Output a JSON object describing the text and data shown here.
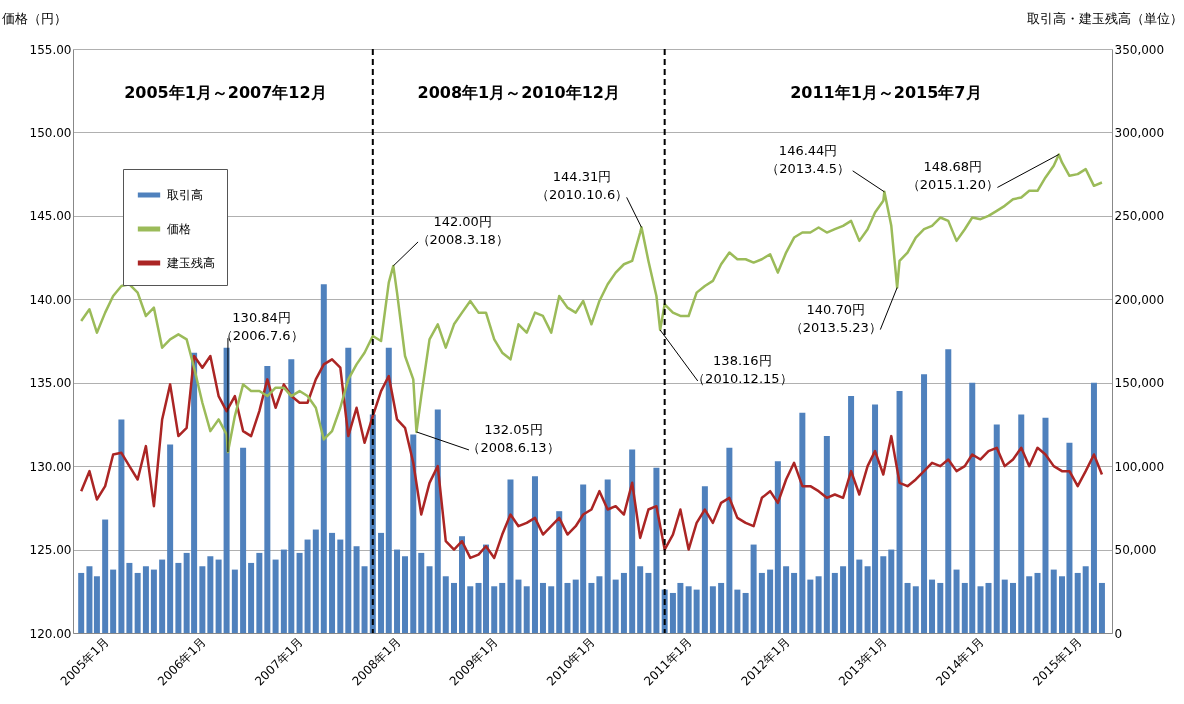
{
  "chart_data": {
    "type": "bar",
    "ylabel": "価格（円）",
    "y2label": "取引高・建玉残高（単位）",
    "x": [
      "2005-01",
      "2005-02",
      "2005-03",
      "2005-04",
      "2005-05",
      "2005-06",
      "2005-07",
      "2005-08",
      "2005-09",
      "2005-10",
      "2005-11",
      "2005-12",
      "2006-01",
      "2006-02",
      "2006-03",
      "2006-04",
      "2006-05",
      "2006-06",
      "2006-07",
      "2006-08",
      "2006-09",
      "2006-10",
      "2006-11",
      "2006-12",
      "2007-01",
      "2007-02",
      "2007-03",
      "2007-04",
      "2007-05",
      "2007-06",
      "2007-07",
      "2007-08",
      "2007-09",
      "2007-10",
      "2007-11",
      "2007-12",
      "2008-01",
      "2008-02",
      "2008-03",
      "2008-04",
      "2008-05",
      "2008-06",
      "2008-07",
      "2008-08",
      "2008-09",
      "2008-10",
      "2008-11",
      "2008-12",
      "2009-01",
      "2009-02",
      "2009-03",
      "2009-04",
      "2009-05",
      "2009-06",
      "2009-07",
      "2009-08",
      "2009-09",
      "2009-10",
      "2009-11",
      "2009-12",
      "2010-01",
      "2010-02",
      "2010-03",
      "2010-04",
      "2010-05",
      "2010-06",
      "2010-07",
      "2010-08",
      "2010-09",
      "2010-10",
      "2010-11",
      "2010-12",
      "2011-01",
      "2011-02",
      "2011-03",
      "2011-04",
      "2011-05",
      "2011-06",
      "2011-07",
      "2011-08",
      "2011-09",
      "2011-10",
      "2011-11",
      "2011-12",
      "2012-01",
      "2012-02",
      "2012-03",
      "2012-04",
      "2012-05",
      "2012-06",
      "2012-07",
      "2012-08",
      "2012-09",
      "2012-10",
      "2012-11",
      "2012-12",
      "2013-01",
      "2013-02",
      "2013-03",
      "2013-04",
      "2013-05",
      "2013-06",
      "2013-07",
      "2013-08",
      "2013-09",
      "2013-10",
      "2013-11",
      "2013-12",
      "2014-01",
      "2014-02",
      "2014-03",
      "2014-04",
      "2014-05",
      "2014-06",
      "2014-07",
      "2014-08",
      "2014-09",
      "2014-10",
      "2014-11",
      "2014-12",
      "2015-01",
      "2015-02",
      "2015-03",
      "2015-04",
      "2015-05",
      "2015-06",
      "2015-07"
    ],
    "series": [
      {
        "name": "取引高",
        "axis": "y2",
        "color": "#4f81bd",
        "values": [
          36000,
          40000,
          34000,
          68000,
          38000,
          128000,
          42000,
          36000,
          40000,
          38000,
          44000,
          113000,
          42000,
          48000,
          168000,
          40000,
          46000,
          44000,
          171000,
          38000,
          111000,
          42000,
          48000,
          160000,
          44000,
          50000,
          164000,
          48000,
          56000,
          62000,
          209000,
          60000,
          56000,
          171000,
          52000,
          40000,
          131000,
          60000,
          171000,
          50000,
          46000,
          119000,
          48000,
          40000,
          134000,
          34000,
          30000,
          58000,
          28000,
          30000,
          53000,
          28000,
          30000,
          92000,
          32000,
          28000,
          94000,
          30000,
          28000,
          73000,
          30000,
          32000,
          89000,
          30000,
          34000,
          92000,
          32000,
          36000,
          110000,
          40000,
          36000,
          99000,
          26000,
          24000,
          30000,
          28000,
          26000,
          88000,
          28000,
          30000,
          111000,
          26000,
          24000,
          53000,
          36000,
          38000,
          103000,
          40000,
          36000,
          132000,
          32000,
          34000,
          118000,
          36000,
          40000,
          142000,
          44000,
          40000,
          137000,
          46000,
          50000,
          145000,
          30000,
          28000,
          155000,
          32000,
          30000,
          170000,
          38000,
          30000,
          150000,
          28000,
          30000,
          125000,
          32000,
          30000,
          131000,
          34000,
          36000,
          129000,
          38000,
          34000,
          114000,
          36000,
          40000,
          150000,
          30000
        ]
      },
      {
        "name": "価格",
        "type": "line",
        "axis": "y",
        "color": "#9bbb59",
        "x": [
          "2005-01",
          "2005-02",
          "2005-03",
          "2005-04",
          "2005-05",
          "2005-06",
          "2005-07",
          "2005-08",
          "2005-09",
          "2005-10",
          "2005-11",
          "2005-12",
          "2006-01",
          "2006-02",
          "2006-03",
          "2006-04",
          "2006-05",
          "2006-06",
          "2006-07",
          "2006-07-06",
          "2006-08",
          "2006-09",
          "2006-10",
          "2006-11",
          "2006-12",
          "2007-01",
          "2007-02",
          "2007-03",
          "2007-04",
          "2007-05",
          "2007-06",
          "2007-07",
          "2007-08",
          "2007-09",
          "2007-10",
          "2007-11",
          "2007-12",
          "2008-01",
          "2008-02",
          "2008-03",
          "2008-03-18",
          "2008-04",
          "2008-05",
          "2008-06",
          "2008-06-13",
          "2008-07",
          "2008-08",
          "2008-09",
          "2008-10",
          "2008-11",
          "2008-12",
          "2009-01",
          "2009-02",
          "2009-03",
          "2009-04",
          "2009-05",
          "2009-06",
          "2009-07",
          "2009-08",
          "2009-09",
          "2009-10",
          "2009-11",
          "2009-12",
          "2010-01",
          "2010-02",
          "2010-03",
          "2010-04",
          "2010-05",
          "2010-06",
          "2010-07",
          "2010-08",
          "2010-09",
          "2010-10",
          "2010-10-06",
          "2010-11",
          "2010-12",
          "2010-12-15",
          "2011-01",
          "2011-02",
          "2011-03",
          "2011-04",
          "2011-05",
          "2011-06",
          "2011-07",
          "2011-08",
          "2011-09",
          "2011-10",
          "2011-11",
          "2011-12",
          "2012-01",
          "2012-02",
          "2012-03",
          "2012-04",
          "2012-05",
          "2012-06",
          "2012-07",
          "2012-08",
          "2012-09",
          "2012-10",
          "2012-11",
          "2012-12",
          "2013-01",
          "2013-02",
          "2013-03",
          "2013-04",
          "2013-04-05",
          "2013-05",
          "2013-05-23",
          "2013-06",
          "2013-07",
          "2013-08",
          "2013-09",
          "2013-10",
          "2013-11",
          "2013-12",
          "2014-01",
          "2014-02",
          "2014-03",
          "2014-04",
          "2014-05",
          "2014-06",
          "2014-07",
          "2014-08",
          "2014-09",
          "2014-10",
          "2014-11",
          "2014-12",
          "2015-01",
          "2015-01-20",
          "2015-02",
          "2015-03",
          "2015-04",
          "2015-05",
          "2015-06",
          "2015-07"
        ],
        "values": [
          138.7,
          139.4,
          138.0,
          139.2,
          140.2,
          140.8,
          140.9,
          140.4,
          139.0,
          139.5,
          137.1,
          137.6,
          137.9,
          137.6,
          135.9,
          133.8,
          132.1,
          132.8,
          131.9,
          130.84,
          133.0,
          134.9,
          134.5,
          134.5,
          134.2,
          134.7,
          134.7,
          134.2,
          134.5,
          134.2,
          133.5,
          131.6,
          132.1,
          133.5,
          135.2,
          136.1,
          136.8,
          137.8,
          137.5,
          141.0,
          142.0,
          140.4,
          136.6,
          135.2,
          132.05,
          134.2,
          137.6,
          138.5,
          137.1,
          138.5,
          139.2,
          139.9,
          139.2,
          139.2,
          137.6,
          136.8,
          136.4,
          138.5,
          138.0,
          139.2,
          139.0,
          138.0,
          140.2,
          139.5,
          139.2,
          139.9,
          138.5,
          139.9,
          140.9,
          141.6,
          142.1,
          142.3,
          144.0,
          144.31,
          142.3,
          140.2,
          138.16,
          139.7,
          139.2,
          139.0,
          139.0,
          140.4,
          140.8,
          141.1,
          142.1,
          142.8,
          142.4,
          142.4,
          142.2,
          142.4,
          142.7,
          141.6,
          142.8,
          143.7,
          144.0,
          144.0,
          144.3,
          144.0,
          144.2,
          144.4,
          144.7,
          143.5,
          144.2,
          145.2,
          145.9,
          146.44,
          144.4,
          140.7,
          142.3,
          142.8,
          143.7,
          144.2,
          144.4,
          144.9,
          144.7,
          143.5,
          144.2,
          144.9,
          144.8,
          145.0,
          145.3,
          145.6,
          146.0,
          146.1,
          146.5,
          146.5,
          147.3,
          148.0,
          148.68,
          148.2,
          147.4,
          147.5,
          147.8,
          146.8,
          147.0
        ]
      },
      {
        "name": "建玉残高",
        "type": "line",
        "axis": "y2",
        "color": "#ab2524",
        "values": [
          85000,
          97000,
          80000,
          88000,
          107000,
          108000,
          100000,
          92000,
          112000,
          76000,
          128000,
          149000,
          118000,
          123000,
          166000,
          159000,
          166000,
          142000,
          133000,
          142000,
          121000,
          118000,
          133000,
          152000,
          135000,
          149000,
          142000,
          138000,
          138000,
          152000,
          161000,
          164000,
          159000,
          118000,
          135000,
          114000,
          130000,
          145000,
          154000,
          128000,
          123000,
          102000,
          71000,
          90000,
          100000,
          55000,
          50000,
          55000,
          45000,
          47000,
          52000,
          45000,
          59000,
          71000,
          64000,
          66000,
          69000,
          59000,
          64000,
          69000,
          59000,
          64000,
          71000,
          74000,
          85000,
          74000,
          76000,
          71000,
          90000,
          57000,
          74000,
          76000,
          50000,
          59000,
          74000,
          50000,
          66000,
          74000,
          66000,
          78000,
          81000,
          69000,
          66000,
          64000,
          81000,
          85000,
          78000,
          92000,
          102000,
          88000,
          88000,
          85000,
          81000,
          83000,
          81000,
          97000,
          83000,
          100000,
          109000,
          95000,
          118000,
          90000,
          88000,
          92000,
          97000,
          102000,
          100000,
          104000,
          97000,
          100000,
          107000,
          104000,
          109000,
          111000,
          100000,
          104000,
          111000,
          100000,
          111000,
          107000,
          100000,
          97000,
          97000,
          88000,
          97000,
          107000,
          95000
        ]
      }
    ],
    "xlim": [
      "2004-12-20",
      "2015-07-20"
    ],
    "xticks": [
      {
        "value": "2005-01",
        "label": "2005年1月"
      },
      {
        "value": "2006-01",
        "label": "2006年1月"
      },
      {
        "value": "2007-01",
        "label": "2007年1月"
      },
      {
        "value": "2008-01",
        "label": "2008年1月"
      },
      {
        "value": "2009-01",
        "label": "2009年1月"
      },
      {
        "value": "2010-01",
        "label": "2010年1月"
      },
      {
        "value": "2011-01",
        "label": "2011年1月"
      },
      {
        "value": "2012-01",
        "label": "2012年1月"
      },
      {
        "value": "2013-01",
        "label": "2013年1月"
      },
      {
        "value": "2014-01",
        "label": "2014年1月"
      },
      {
        "value": "2015-01",
        "label": "2015年1月"
      }
    ],
    "ylim": [
      120,
      155
    ],
    "yticks": [
      {
        "value": 120,
        "label": "120.00"
      },
      {
        "value": 125,
        "label": "125.00"
      },
      {
        "value": 130,
        "label": "130.00"
      },
      {
        "value": 135,
        "label": "135.00"
      },
      {
        "value": 140,
        "label": "140.00"
      },
      {
        "value": 145,
        "label": "145.00"
      },
      {
        "value": 150,
        "label": "150.00"
      },
      {
        "value": 155,
        "label": "155.00"
      }
    ],
    "y2lim": [
      0,
      350000
    ],
    "y2ticks": [
      0,
      {
        "value": 50000,
        "label": "50,000"
      },
      {
        "value": 100000,
        "label": "100,000"
      },
      {
        "value": 150000,
        "label": "150,000"
      },
      {
        "value": 200000,
        "label": "200,000"
      },
      {
        "value": 250000,
        "label": "250,000"
      },
      {
        "value": 300000,
        "label": "300,000"
      },
      {
        "value": 350000,
        "label": "350,000"
      }
    ],
    "grid": "y",
    "legend": "top left",
    "ref_lines": [
      {
        "axis": "x",
        "value": "2008-01",
        "color": "#000000",
        "line_style": "dashed"
      },
      {
        "axis": "x",
        "value": "2011-01",
        "color": "#000000",
        "line_style": "dashed"
      }
    ],
    "annotations": [
      "2005年1月～2007年12月",
      "2008年1月～2010年12月",
      "2011年1月～2015年7月",
      {
        "text": "130.84円（2006.7.6）",
        "x": "2006-07-06",
        "y": 130.84
      },
      {
        "text": "142.00円（2008.3.18）",
        "x": "2008-03-18",
        "y": 142.0
      },
      {
        "text": "132.05円（2008.6.13）",
        "x": "2008-06-13",
        "y": 132.05
      },
      {
        "text": "144.31円（2010.10.6）",
        "x": "2010-10-06",
        "y": 144.31
      },
      {
        "text": "138.16円（2010.12.15）",
        "x": "2010-12-15",
        "y": 138.16
      },
      {
        "text": "146.44円（2013.4.5）",
        "x": "2013-04-05",
        "y": 146.44
      },
      {
        "text": "140.70円（2013.5.23）",
        "x": "2013-05-23",
        "y": 140.7
      },
      {
        "text": "148.68円（2015.1.20）",
        "x": "2015-01-20",
        "y": 148.68
      }
    ]
  }
}
